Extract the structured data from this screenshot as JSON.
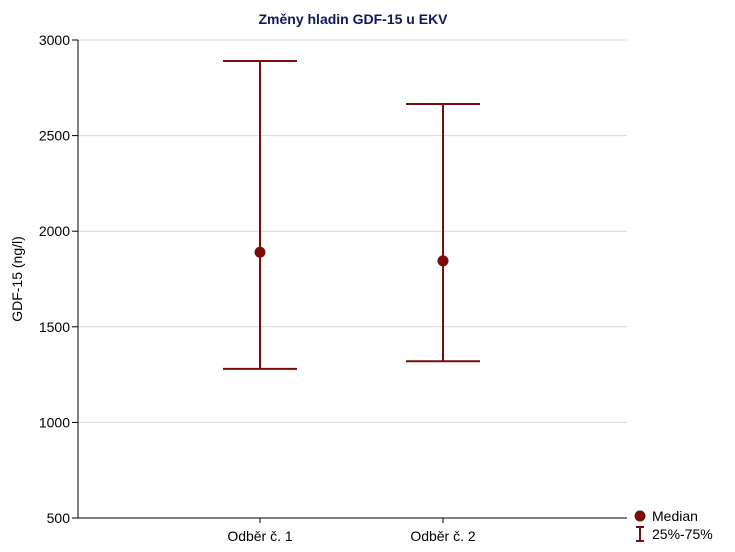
{
  "chart_data": {
    "type": "errorbar",
    "title": "Změny hladin GDF-15 u EKV",
    "ylabel": "GDF-15 (ng/l)",
    "xlabel": "",
    "categories": [
      "Odběr č. 1",
      "Odběr č. 2"
    ],
    "median": [
      1890,
      1845
    ],
    "q25": [
      1280,
      1320
    ],
    "q75": [
      2890,
      2665
    ],
    "ylim": [
      500,
      3000
    ],
    "yticks": [
      500,
      1000,
      1500,
      2000,
      2500,
      3000
    ],
    "grid": "horizontal",
    "legend": {
      "position": "bottom-right",
      "items": [
        {
          "label": "Median",
          "symbol": "circle"
        },
        {
          "label": "25%-75%",
          "symbol": "whisker"
        }
      ]
    },
    "colors": {
      "series": "#7a0c0c",
      "title": "#0a1a5a",
      "grid": "#d9d9d9",
      "axis": "#000000"
    }
  }
}
